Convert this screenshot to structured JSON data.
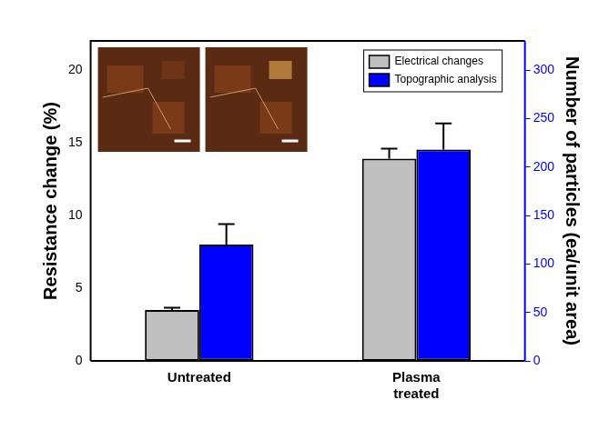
{
  "chart_data": {
    "type": "bar",
    "categories": [
      "Untreated",
      "Plasma\ntreated"
    ],
    "series": [
      {
        "name": "Electrical changes",
        "color": "#c0c0c0",
        "values": [
          3.5,
          13.9
        ],
        "errors": [
          0.15,
          0.7
        ]
      },
      {
        "name": "Topographic analysis",
        "color": "#0000ff",
        "values": [
          120,
          218
        ],
        "errors": [
          21,
          27
        ],
        "axis": "y2"
      }
    ],
    "y_label": "Resistance change (%)",
    "y2_label": "Number of particles (ea/unit area)",
    "ylim": [
      0,
      22
    ],
    "yticks": [
      0,
      5,
      10,
      15,
      20
    ],
    "y2lim": [
      0,
      330
    ],
    "y2ticks": [
      0,
      50,
      100,
      150,
      200,
      250,
      300
    ],
    "grid": false,
    "legend": "upper right"
  }
}
